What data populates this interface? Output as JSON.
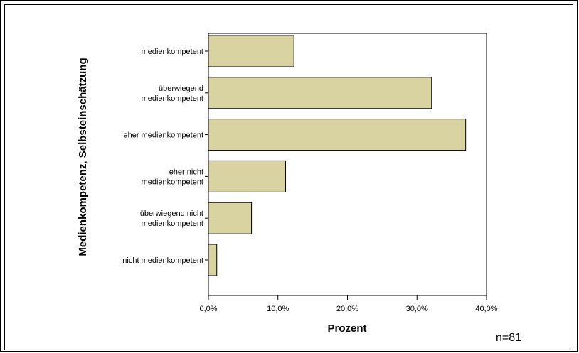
{
  "chart_data": {
    "type": "bar",
    "orientation": "horizontal",
    "categories": [
      [
        "medienkompetent"
      ],
      [
        "überwiegend",
        "medienkompetent"
      ],
      [
        "eher medienkompetent"
      ],
      [
        "eher nicht",
        "medienkompetent"
      ],
      [
        "überwiegend nicht",
        "medienkompetent"
      ],
      [
        "nicht medienkompetent"
      ]
    ],
    "values": [
      12.3,
      32.1,
      37.0,
      11.1,
      6.2,
      1.2
    ],
    "xlabel": "Prozent",
    "ylabel": "Medienkompetenz, Selbsteinschätzung",
    "xlim": [
      0,
      40
    ],
    "xticks": [
      "0,0%",
      "10,0%",
      "20,0%",
      "30,0%",
      "40,0%"
    ],
    "xtick_values": [
      0,
      10,
      20,
      30,
      40
    ],
    "grid": false,
    "bar_color": "#d9d3a2",
    "bar_edge_color": "#000000",
    "note": "n=81"
  }
}
